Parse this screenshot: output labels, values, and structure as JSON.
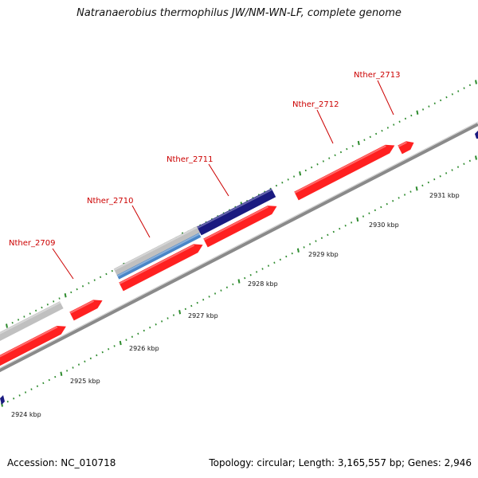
{
  "title": "Natranaerobius thermophilus JW/NM-WN-LF, complete genome",
  "footer": {
    "accession": "Accession: NC_010718",
    "stats": "Topology: circular; Length: 3,165,557 bp; Genes: 2,946"
  },
  "colors": {
    "backbone": "#8a8a8a",
    "tick": "#2e8b2e",
    "forward_gene": "#ff2020",
    "blue_feature": "#1a1a80",
    "light_blue_feature": "#4a86c8",
    "grey_feature": "#c0c0c0",
    "label": "#cc0000"
  },
  "scale_labels": [
    "2924 kbp",
    "2925 kbp",
    "2926 kbp",
    "2927 kbp",
    "2928 kbp",
    "2929 kbp",
    "2930 kbp",
    "2931 kbp"
  ],
  "gene_labels": [
    "Nther_2709",
    "Nther_2710",
    "Nther_2711",
    "Nther_2712",
    "Nther_2713"
  ]
}
